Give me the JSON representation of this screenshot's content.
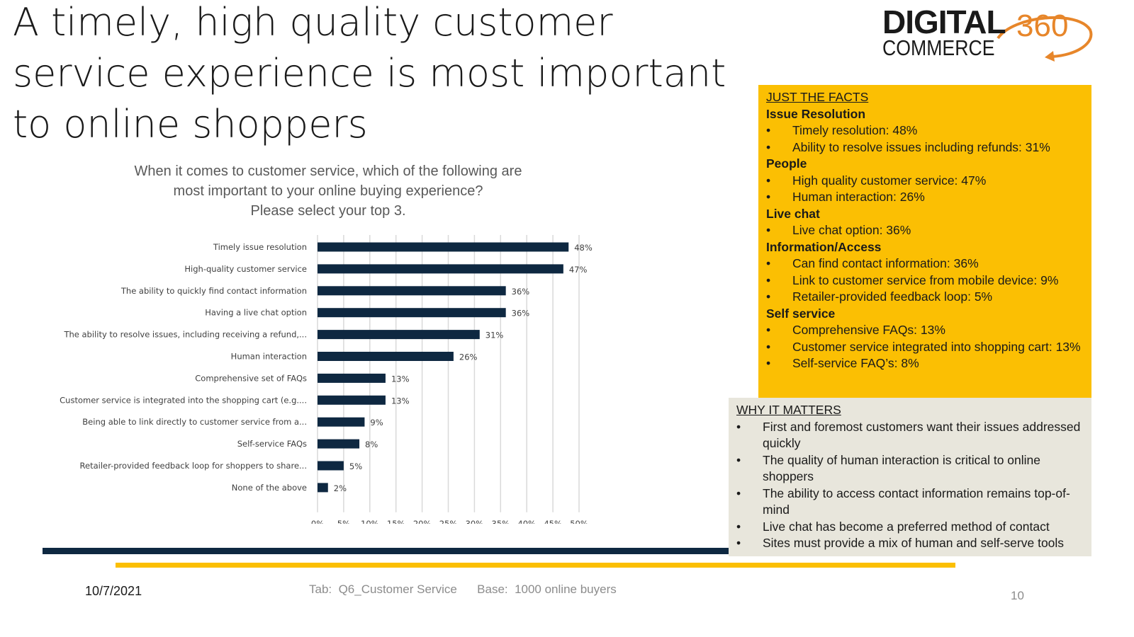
{
  "title": "A timely, high quality customer service experience is most important to online shoppers",
  "logo": {
    "line1": "DIGITAL",
    "line2": "COMMERCE",
    "number": "360",
    "accent_color": "#e7862a"
  },
  "question": {
    "line1": "When it comes to customer service, which of the following are",
    "line2": "most important to your online buying experience?",
    "line3": "Please select your top 3."
  },
  "chart_data": {
    "type": "bar",
    "orientation": "horizontal",
    "categories": [
      "Timely issue resolution",
      "High-quality customer service",
      "The ability to quickly find contact information",
      "Having a live chat option",
      "The ability to resolve issues, including receiving a refund,...",
      "Human interaction",
      "Comprehensive set of FAQs",
      "Customer service is integrated into the shopping cart (e.g....",
      "Being able to link directly to customer service from a...",
      "Self-service FAQs",
      "Retailer-provided feedback loop for shoppers to share...",
      "None of the above"
    ],
    "values": [
      48,
      47,
      36,
      36,
      31,
      26,
      13,
      13,
      9,
      8,
      5,
      2
    ],
    "value_labels": [
      "48%",
      "47%",
      "36%",
      "36%",
      "31%",
      "26%",
      "13%",
      "13%",
      "9%",
      "8%",
      "5%",
      "2%"
    ],
    "xlim": [
      0,
      50
    ],
    "x_ticks": [
      "0%",
      "5%",
      "10%",
      "15%",
      "20%",
      "25%",
      "30%",
      "35%",
      "40%",
      "45%",
      "50%"
    ],
    "grid": true,
    "bar_color": "#0e2841",
    "grid_color": "#d9d9d9"
  },
  "facts": {
    "heading": "JUST THE FACTS",
    "groups": [
      {
        "name": "Issue Resolution",
        "items": [
          "Timely resolution:  48%",
          "Ability to resolve issues including refunds:  31%"
        ]
      },
      {
        "name": "People",
        "items": [
          "High quality customer service:  47%",
          "Human interaction:  26%"
        ]
      },
      {
        "name": "Live chat",
        "items": [
          "Live chat option:  36%"
        ]
      },
      {
        "name": "Information/Access",
        "items": [
          "Can find contact information:  36%",
          "Link to customer service from mobile device:  9%",
          "Retailer-provided feedback loop:  5%"
        ]
      },
      {
        "name": "Self service",
        "items": [
          "Comprehensive FAQs:  13%",
          "Customer service integrated into shopping cart: 13%",
          "Self-service FAQ’s:  8%"
        ]
      }
    ],
    "bullet": "•",
    "background": "#fbbf03"
  },
  "matters": {
    "heading": "WHY IT MATTERS",
    "items": [
      "First and foremost customers want their issues addressed quickly",
      "The quality of human interaction is critical to online shoppers",
      "The ability to access contact information remains top-of-mind",
      "Live chat has become a preferred method of contact",
      "Sites must provide a mix of human and self-serve tools"
    ],
    "background": "#e8e6dc"
  },
  "footer": {
    "date": "10/7/2021",
    "tab": "Tab:  Q6_Customer Service      Base:  1000 online buyers",
    "page": "10"
  }
}
